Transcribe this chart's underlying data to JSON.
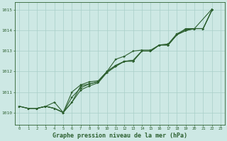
{
  "title": "Graphe pression niveau de la mer (hPa)",
  "background_color": "#cde8e4",
  "grid_color": "#a8cfc8",
  "line_color": "#2d6030",
  "xlim": [
    -0.5,
    23.5
  ],
  "ylim": [
    1009.4,
    1015.4
  ],
  "yticks": [
    1010,
    1011,
    1012,
    1013,
    1014,
    1015
  ],
  "xticks": [
    0,
    1,
    2,
    3,
    4,
    5,
    6,
    7,
    8,
    9,
    10,
    11,
    12,
    13,
    14,
    15,
    16,
    17,
    18,
    19,
    20,
    21,
    22,
    23
  ],
  "s1_x": [
    0,
    1,
    2,
    3,
    4,
    5,
    6,
    7,
    8,
    9,
    10,
    11,
    12,
    13,
    14,
    15,
    16,
    17,
    18,
    19,
    20,
    22
  ],
  "s1_y": [
    1010.3,
    1010.2,
    1010.2,
    1010.3,
    1010.2,
    1010.0,
    1011.0,
    1011.35,
    1011.5,
    1011.55,
    1012.0,
    1012.6,
    1012.75,
    1013.0,
    1013.05,
    1013.05,
    1013.3,
    1013.35,
    1013.85,
    1014.05,
    1014.1,
    1015.05
  ],
  "s2_x": [
    0,
    1,
    2,
    3,
    4,
    5,
    6,
    7,
    8,
    9,
    10,
    11,
    12,
    13,
    14,
    15,
    16,
    17,
    18,
    19,
    20,
    21,
    22
  ],
  "s2_y": [
    1010.3,
    1010.2,
    1010.2,
    1010.3,
    1010.2,
    1010.0,
    1010.5,
    1011.1,
    1011.3,
    1011.45,
    1011.95,
    1012.25,
    1012.5,
    1012.55,
    1013.0,
    1013.0,
    1013.3,
    1013.3,
    1013.8,
    1014.0,
    1014.1,
    1014.1,
    1015.0
  ],
  "s3_x": [
    0,
    1,
    2,
    3,
    4,
    5,
    6,
    7,
    8,
    9,
    10,
    11,
    12,
    13,
    14,
    15,
    16,
    17,
    18,
    19,
    20,
    21,
    22
  ],
  "s3_y": [
    1010.3,
    1010.2,
    1010.2,
    1010.3,
    1010.2,
    1010.0,
    1010.75,
    1011.2,
    1011.4,
    1011.5,
    1012.0,
    1012.3,
    1012.5,
    1012.55,
    1013.0,
    1013.0,
    1013.3,
    1013.3,
    1013.8,
    1014.0,
    1014.1,
    1014.1,
    1015.0
  ],
  "s4_x": [
    2,
    3,
    4,
    5,
    6,
    7,
    8,
    9,
    10,
    11,
    12,
    13,
    14,
    15,
    16,
    17,
    18,
    19,
    20,
    21,
    22
  ],
  "s4_y": [
    1010.2,
    1010.3,
    1010.5,
    1010.0,
    1010.5,
    1011.3,
    1011.4,
    1011.5,
    1012.0,
    1012.3,
    1012.5,
    1012.5,
    1013.0,
    1013.0,
    1013.3,
    1013.3,
    1013.8,
    1014.1,
    1014.1,
    1014.1,
    1015.0
  ]
}
